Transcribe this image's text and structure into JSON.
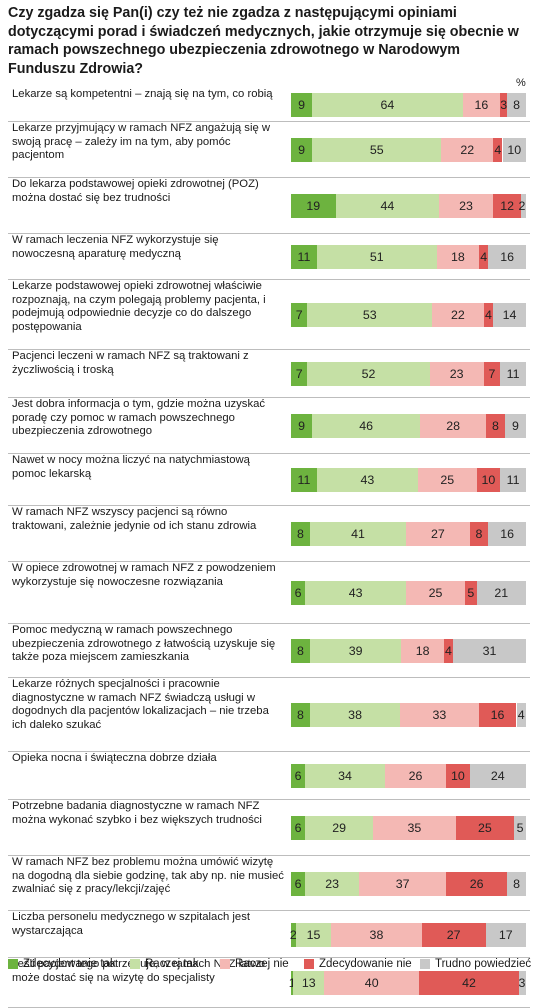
{
  "title": "Czy zgadza się Pan(i) czy też nie zgadza z następującymi opiniami dotyczącymi porad i świadczeń medycznych, jakie otrzymuje się obecnie w ramach powszechnego ubezpieczenia zdrowotnego w Narodowym Funduszu Zdrowia?",
  "unit": "%",
  "chart_data": {
    "type": "bar",
    "orientation": "horizontal",
    "stacked": true,
    "title": "Czy zgadza się Pan(i) czy też nie zgadza z następującymi opiniami dotyczącymi porad i świadczeń medycznych, jakie otrzymuje się obecnie w ramach powszechnego ubezpieczenia zdrowotnego w Narodowym Funduszu Zdrowia?",
    "unit": "%",
    "legend": "bottom",
    "categories": [
      "Lekarze są kompetentni – znają się na tym, co robią",
      "Lekarze przyjmujący w ramach NFZ angażują się w swoją pracę – zależy im na tym, aby pomóc pacjentom",
      "Do lekarza podstawowej opieki zdrowotnej (POZ) można dostać się bez trudności",
      "W ramach leczenia NFZ wykorzystuje się nowoczesną aparaturę medyczną",
      "Lekarze podstawowej opieki zdrowotnej właściwie rozpoznają, na czym polegają problemy pacjenta, i podejmują odpowiednie decyzje co do dalszego postępowania",
      "Pacjenci leczeni w ramach NFZ są traktowani z życzliwością i troską",
      "Jest dobra informacja o tym, gdzie można uzyskać poradę czy pomoc w ramach powszechnego ubezpieczenia zdrowotnego",
      "Nawet w nocy można liczyć na natychmiastową pomoc lekarską",
      "W ramach NFZ wszyscy pacjenci są równo traktowani, zależnie jedynie od ich stanu zdrowia",
      "W opiece zdrowotnej w ramach NFZ z powodzeniem wykorzystuje się nowoczesne rozwiązania",
      "Pomoc medyczną w ramach powszechnego ubezpieczenia zdrowotnego z łatwością uzyskuje się także poza miejscem zamieszkania",
      "Lekarze różnych specjalności i pracownie diagnostyczne w ramach NFZ świadczą usługi w dogodnych dla pacjentów lokalizacjach – nie trzeba ich daleko szukać",
      "Opieka nocna i świąteczna dobrze działa",
      "Potrzebne badania diagnostyczne w ramach NFZ można wykonać szybko i bez większych trudności",
      "W ramach NFZ bez problemu można umówić wizytę na dogodną dla siebie godzinę, tak aby np. nie musieć zwalniać się z pracy/lekcji/zajęć",
      "Liczba personelu medycznego w szpitalach jest wystarczająca",
      "Jeśli pacjent tego potrzebuje, w ramach NFZ łatwo może dostać się na wizytę do specjalisty"
    ],
    "series": [
      {
        "name": "Zdecydowanie tak",
        "color": "#6db33f",
        "values": [
          9,
          9,
          19,
          11,
          7,
          7,
          9,
          11,
          8,
          6,
          8,
          8,
          6,
          6,
          6,
          2,
          1
        ]
      },
      {
        "name": "Raczej tak",
        "color": "#c5e0a5",
        "values": [
          64,
          55,
          44,
          51,
          53,
          52,
          46,
          43,
          41,
          43,
          39,
          38,
          34,
          29,
          23,
          15,
          13
        ]
      },
      {
        "name": "Raczej nie",
        "color": "#f4b8b4",
        "values": [
          16,
          22,
          23,
          18,
          22,
          23,
          28,
          25,
          27,
          25,
          18,
          33,
          26,
          35,
          37,
          38,
          40
        ]
      },
      {
        "name": "Zdecydowanie nie",
        "color": "#e05a57",
        "values": [
          3,
          4,
          12,
          4,
          4,
          7,
          8,
          10,
          8,
          5,
          4,
          16,
          10,
          25,
          26,
          27,
          42
        ]
      },
      {
        "name": "Trudno powiedzieć",
        "color": "#c8c8c8",
        "values": [
          8,
          10,
          2,
          16,
          14,
          11,
          9,
          11,
          16,
          21,
          31,
          4,
          24,
          5,
          8,
          17,
          3
        ]
      }
    ]
  }
}
